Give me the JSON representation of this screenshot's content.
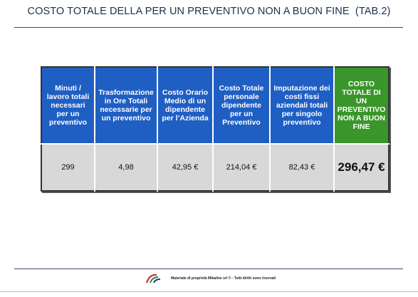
{
  "header": {
    "title": "COSTO TOTALE DELLA PER UN PREVENTIVO NON A BUON FINE  (TAB.2)"
  },
  "table": {
    "columns": [
      "Minuti / lavoro totali necessari per un preventivo",
      "Trasformazione in Ore Totali necessarie per un preventivo",
      "Costo Orario Medio di un dipendente per l’Azienda",
      "Costo Totale personale dipendente per un Preventivo",
      "Imputazione dei costi fissi aziendali totali per singolo preventivo",
      "COSTO TOTALE DI UN PREVENTIVO NON A BUON FINE"
    ],
    "rows": [
      [
        "299",
        "4,98",
        "42,95 €",
        "214,04 €",
        "82,43 €",
        "296,47 €"
      ]
    ]
  },
  "footer": {
    "text": "Materiale di proprietà Mikaline srl © - Tutti diritti sono riservati"
  }
}
